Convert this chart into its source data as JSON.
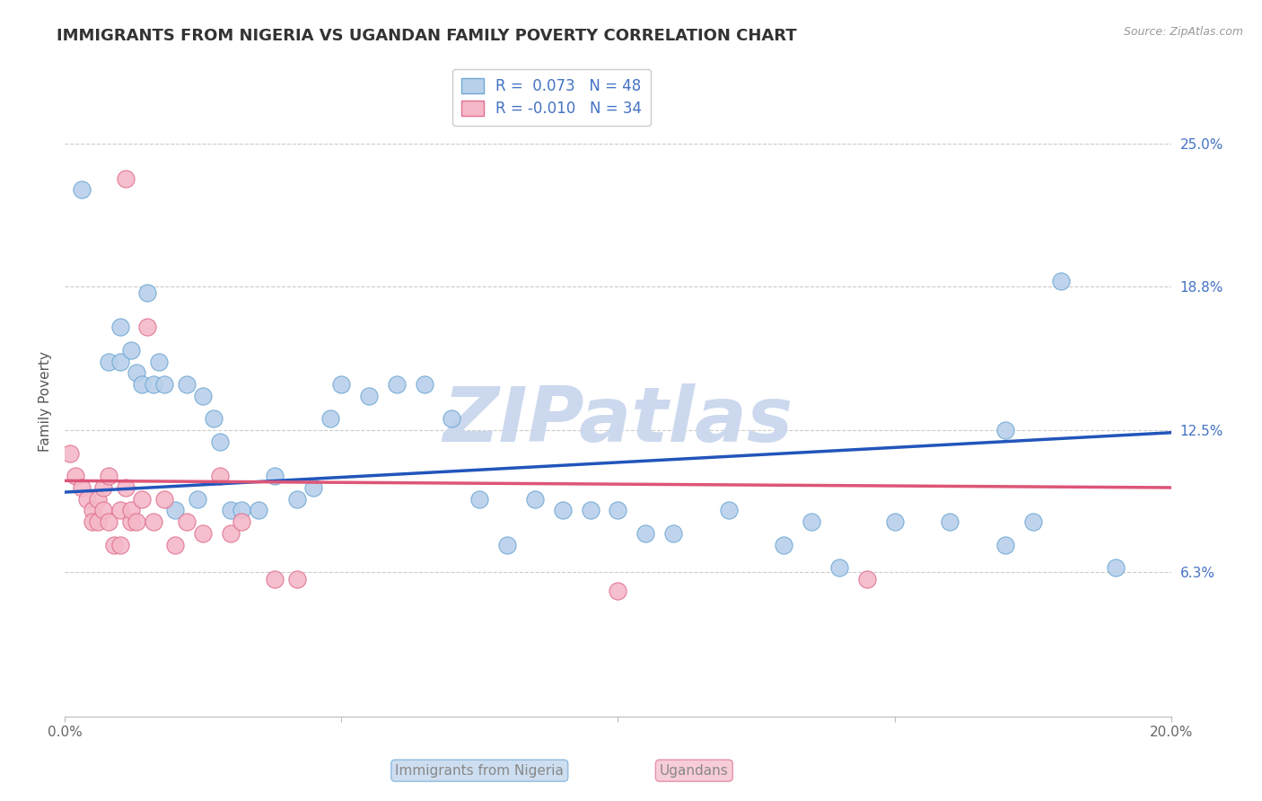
{
  "title": "IMMIGRANTS FROM NIGERIA VS UGANDAN FAMILY POVERTY CORRELATION CHART",
  "source": "Source: ZipAtlas.com",
  "xlabel_blue": "Immigrants from Nigeria",
  "xlabel_pink": "Ugandans",
  "ylabel": "Family Poverty",
  "xlim": [
    0.0,
    0.2
  ],
  "ylim": [
    0.0,
    0.275
  ],
  "xtick_vals": [
    0.0,
    0.05,
    0.1,
    0.15,
    0.2
  ],
  "xtick_labels": [
    "0.0%",
    "",
    "",
    "",
    "20.0%"
  ],
  "ytick_vals": [
    0.063,
    0.125,
    0.188,
    0.25
  ],
  "ytick_labels": [
    "6.3%",
    "12.5%",
    "18.8%",
    "25.0%"
  ],
  "blue_r": 0.073,
  "blue_n": 48,
  "pink_r": -0.01,
  "pink_n": 34,
  "blue_color": "#b8d0ea",
  "blue_edge": "#6fa8d4",
  "pink_color": "#f4b8c8",
  "pink_edge": "#e07090",
  "blue_line_color": "#2255bb",
  "pink_line_color": "#dd5577",
  "watermark": "ZIPatlas",
  "watermark_color": "#ccd8ee",
  "blue_line_x0": 0.0,
  "blue_line_y0": 0.098,
  "blue_line_x1": 0.2,
  "blue_line_y1": 0.124,
  "pink_line_x0": 0.0,
  "pink_line_y0": 0.103,
  "pink_line_x1": 0.2,
  "pink_line_y1": 0.1,
  "blue_scatter_x": [
    0.003,
    0.008,
    0.01,
    0.01,
    0.012,
    0.013,
    0.014,
    0.015,
    0.016,
    0.017,
    0.018,
    0.02,
    0.022,
    0.024,
    0.025,
    0.027,
    0.028,
    0.03,
    0.032,
    0.035,
    0.038,
    0.042,
    0.045,
    0.048,
    0.05,
    0.055,
    0.06,
    0.065,
    0.07,
    0.075,
    0.08,
    0.085,
    0.09,
    0.095,
    0.1,
    0.105,
    0.11,
    0.12,
    0.13,
    0.135,
    0.14,
    0.15,
    0.16,
    0.17,
    0.175,
    0.18,
    0.19,
    0.17
  ],
  "blue_scatter_y": [
    0.23,
    0.155,
    0.17,
    0.155,
    0.16,
    0.15,
    0.145,
    0.185,
    0.145,
    0.155,
    0.145,
    0.09,
    0.145,
    0.095,
    0.14,
    0.13,
    0.12,
    0.09,
    0.09,
    0.09,
    0.105,
    0.095,
    0.1,
    0.13,
    0.145,
    0.14,
    0.145,
    0.145,
    0.13,
    0.095,
    0.075,
    0.095,
    0.09,
    0.09,
    0.09,
    0.08,
    0.08,
    0.09,
    0.075,
    0.085,
    0.065,
    0.085,
    0.085,
    0.075,
    0.085,
    0.19,
    0.065,
    0.125
  ],
  "pink_scatter_x": [
    0.001,
    0.002,
    0.003,
    0.004,
    0.005,
    0.005,
    0.006,
    0.006,
    0.007,
    0.007,
    0.008,
    0.008,
    0.009,
    0.01,
    0.01,
    0.011,
    0.011,
    0.012,
    0.012,
    0.013,
    0.014,
    0.015,
    0.016,
    0.018,
    0.02,
    0.022,
    0.025,
    0.028,
    0.03,
    0.032,
    0.038,
    0.042,
    0.1,
    0.145
  ],
  "pink_scatter_y": [
    0.115,
    0.105,
    0.1,
    0.095,
    0.09,
    0.085,
    0.095,
    0.085,
    0.09,
    0.1,
    0.105,
    0.085,
    0.075,
    0.09,
    0.075,
    0.235,
    0.1,
    0.085,
    0.09,
    0.085,
    0.095,
    0.17,
    0.085,
    0.095,
    0.075,
    0.085,
    0.08,
    0.105,
    0.08,
    0.085,
    0.06,
    0.06,
    0.055,
    0.06
  ],
  "title_fontsize": 13,
  "axis_label_fontsize": 11,
  "tick_fontsize": 11,
  "legend_fontsize": 12
}
